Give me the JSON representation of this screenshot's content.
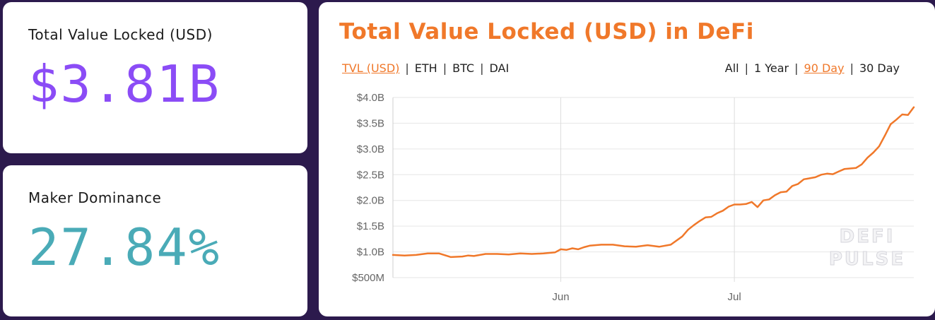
{
  "stats": {
    "tvl": {
      "label": "Total Value Locked (USD)",
      "value": "$3.81B",
      "color": "#8b4cf6"
    },
    "maker": {
      "label": "Maker Dominance",
      "value": "27.84%",
      "color": "#4aabb7"
    }
  },
  "chart_panel": {
    "title": "Total Value Locked (USD) in DeFi",
    "unit_toggles": [
      {
        "label": "TVL (USD)",
        "active": true
      },
      {
        "label": "ETH",
        "active": false
      },
      {
        "label": "BTC",
        "active": false
      },
      {
        "label": "DAI",
        "active": false
      }
    ],
    "range_toggles": [
      {
        "label": "All",
        "active": false
      },
      {
        "label": "1 Year",
        "active": false
      },
      {
        "label": "90 Day",
        "active": true
      },
      {
        "label": "30 Day",
        "active": false
      }
    ],
    "separator": "|",
    "watermark": [
      "DEFI",
      "PULSE"
    ]
  },
  "chart_data": {
    "type": "line",
    "title": "Total Value Locked (USD) in DeFi",
    "xlabel": "",
    "ylabel": "",
    "line_color": "#f0782a",
    "ylim": [
      0.5,
      4.0
    ],
    "y_ticks": [
      {
        "value": 4.0,
        "label": "$4.0B"
      },
      {
        "value": 3.5,
        "label": "$3.5B"
      },
      {
        "value": 3.0,
        "label": "$3.0B"
      },
      {
        "value": 2.5,
        "label": "$2.5B"
      },
      {
        "value": 2.0,
        "label": "$2.0B"
      },
      {
        "value": 1.5,
        "label": "$1.5B"
      },
      {
        "value": 1.0,
        "label": "$1.0B"
      },
      {
        "value": 0.5,
        "label": "$500M"
      }
    ],
    "xlim": [
      0,
      90
    ],
    "x_ticks": [
      {
        "value": 29,
        "label": "Jun"
      },
      {
        "value": 59,
        "label": "Jul"
      }
    ],
    "series": [
      {
        "name": "TVL (USD)",
        "unit": "billions USD",
        "x": [
          0,
          2,
          4,
          6,
          8,
          10,
          12,
          13,
          14,
          16,
          18,
          20,
          22,
          24,
          26,
          28,
          29,
          30,
          31,
          32,
          33,
          34,
          36,
          38,
          40,
          42,
          44,
          46,
          48,
          50,
          51,
          52,
          53,
          54,
          55,
          56,
          57,
          58,
          59,
          60,
          61,
          62,
          63,
          64,
          65,
          66,
          67,
          68,
          69,
          70,
          71,
          72,
          73,
          74,
          75,
          76,
          77,
          78,
          79,
          80,
          81,
          82,
          83,
          84,
          85,
          86,
          87,
          88,
          89,
          90
        ],
        "values": [
          0.94,
          0.93,
          0.94,
          0.97,
          0.97,
          0.9,
          0.91,
          0.93,
          0.92,
          0.96,
          0.96,
          0.95,
          0.97,
          0.96,
          0.97,
          0.99,
          1.05,
          1.04,
          1.07,
          1.05,
          1.09,
          1.12,
          1.14,
          1.14,
          1.11,
          1.1,
          1.13,
          1.1,
          1.14,
          1.3,
          1.43,
          1.52,
          1.6,
          1.67,
          1.68,
          1.75,
          1.8,
          1.88,
          1.92,
          1.92,
          1.93,
          1.97,
          1.87,
          2.0,
          2.02,
          2.1,
          2.16,
          2.17,
          2.28,
          2.32,
          2.41,
          2.43,
          2.45,
          2.5,
          2.52,
          2.51,
          2.56,
          2.61,
          2.62,
          2.63,
          2.7,
          2.83,
          2.93,
          3.05,
          3.26,
          3.48,
          3.57,
          3.67,
          3.66,
          3.81
        ]
      }
    ]
  }
}
